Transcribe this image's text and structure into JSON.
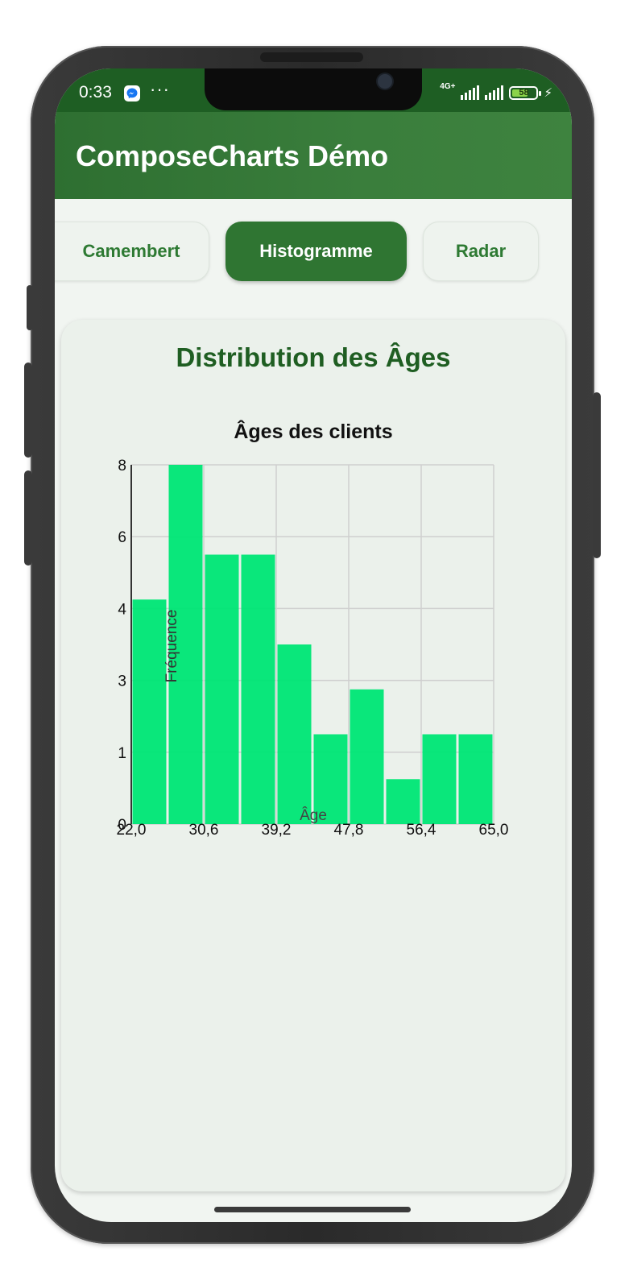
{
  "status_bar": {
    "time": "0:33",
    "network": "4G+",
    "battery": "58",
    "icons": [
      "messenger-icon",
      "more-dots-icon",
      "signal-icon",
      "battery-icon",
      "charging-bolt-icon"
    ]
  },
  "app_bar": {
    "title": "ComposeCharts Démo"
  },
  "tabs": [
    {
      "label": "Camembert",
      "active": false
    },
    {
      "label": "Histogramme",
      "active": true
    },
    {
      "label": "Radar",
      "active": false
    }
  ],
  "card": {
    "title": "Distribution des Âges"
  },
  "colors": {
    "primary": "#2f7532",
    "status_bar": "#1e5e23",
    "card_title": "#1f5e22",
    "bar_fill": "#00e676",
    "grid": "#cfcfcf"
  },
  "chart_data": {
    "type": "bar",
    "title": "Âges des clients",
    "xlabel": "Âge",
    "ylabel": "Fréquence",
    "x_ticks": [
      "22,0",
      "30,6",
      "39,2",
      "47,8",
      "56,4",
      "65,0"
    ],
    "y_ticks": [
      "0",
      "1",
      "3",
      "4",
      "6",
      "8"
    ],
    "xlim": [
      22,
      65
    ],
    "ylim": [
      0,
      8
    ],
    "grid": true,
    "legend": "none",
    "bins": [
      {
        "start": 22.0,
        "end": 26.3,
        "value": 5
      },
      {
        "start": 26.3,
        "end": 30.6,
        "value": 8
      },
      {
        "start": 30.6,
        "end": 34.9,
        "value": 6
      },
      {
        "start": 34.9,
        "end": 39.2,
        "value": 6
      },
      {
        "start": 39.2,
        "end": 43.5,
        "value": 4
      },
      {
        "start": 43.5,
        "end": 47.8,
        "value": 2
      },
      {
        "start": 47.8,
        "end": 52.1,
        "value": 3
      },
      {
        "start": 52.1,
        "end": 56.4,
        "value": 1
      },
      {
        "start": 56.4,
        "end": 60.7,
        "value": 2
      },
      {
        "start": 60.7,
        "end": 65.0,
        "value": 2
      }
    ]
  }
}
